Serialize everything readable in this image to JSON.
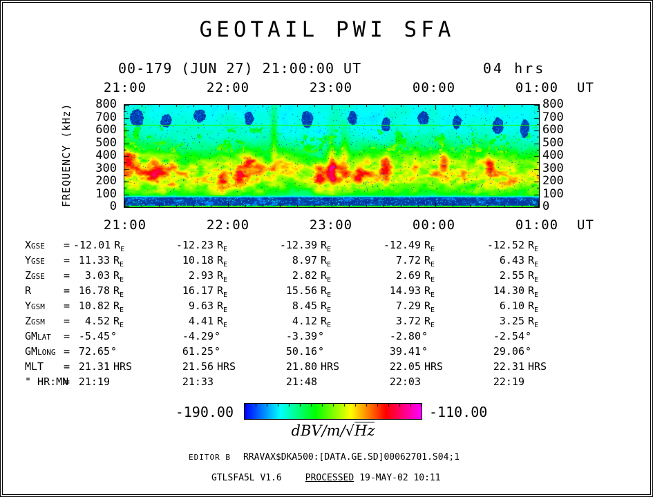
{
  "title": "GEOTAIL PWI SFA",
  "header": {
    "left": "00-179 (JUN 27) 21:00:00 UT",
    "right": "04 hrs"
  },
  "axes": {
    "time_ticks": [
      "21:00",
      "22:00",
      "23:00",
      "00:00",
      "01:00"
    ],
    "time_unit": "UT",
    "freq_label": "FREQUENCY (kHz)",
    "freq_ticks": [
      "800",
      "700",
      "600",
      "500",
      "400",
      "300",
      "200",
      "100",
      "0"
    ]
  },
  "chart_data": {
    "type": "heatmap",
    "title": "GEOTAIL PWI SFA dynamic spectrum, 2000 day 179 (JUN 27) 21:00-01:00 UT",
    "x": {
      "label": "UT",
      "start": "21:00",
      "end": "01:00",
      "hours": 4,
      "ticks": [
        "21:00",
        "22:00",
        "23:00",
        "00:00",
        "01:00"
      ],
      "minor_ticks_per_hour": 6
    },
    "y": {
      "label": "FREQUENCY (kHz)",
      "min": 0,
      "max": 800,
      "major_tick": 100,
      "minor_tick": 50
    },
    "z": {
      "label": "dBV/m/√Hz",
      "min": -190.0,
      "max": -110.0
    },
    "background_level": 0.21,
    "features": {
      "low_band": {
        "f_max_khz": 95,
        "desc": "continuous intense dark-blue band below ~95 kHz for the full interval"
      },
      "line_khz": 645,
      "main_emission": {
        "f_center_khz": 250,
        "f_spread_khz": 180,
        "desc": "continuous broadband green-yellow emission ~100-500 kHz with red cores, strongest 22:40-23:20"
      },
      "enhancements": [
        {
          "t": 0.01,
          "f": 380,
          "dt": 0.02,
          "df": 80,
          "s": 0.22
        },
        {
          "t": 0.08,
          "f": 300,
          "dt": 0.015,
          "df": 70,
          "s": 0.18
        },
        {
          "t": 0.3,
          "f": 360,
          "dt": 0.015,
          "df": 70,
          "s": 0.2
        },
        {
          "t": 0.36,
          "f": 520,
          "dt": 0.008,
          "df": 260,
          "s": 0.16
        },
        {
          "t": 0.47,
          "f": 200,
          "dt": 0.012,
          "df": 90,
          "s": 0.22
        },
        {
          "t": 0.5,
          "f": 340,
          "dt": 0.01,
          "df": 240,
          "s": 0.24
        },
        {
          "t": 0.53,
          "f": 420,
          "dt": 0.012,
          "df": 160,
          "s": 0.22
        },
        {
          "t": 0.565,
          "f": 260,
          "dt": 0.01,
          "df": 80,
          "s": 0.2
        },
        {
          "t": 0.63,
          "f": 350,
          "dt": 0.012,
          "df": 90,
          "s": 0.2
        },
        {
          "t": 0.7,
          "f": 300,
          "dt": 0.01,
          "df": 80,
          "s": 0.18
        },
        {
          "t": 0.77,
          "f": 380,
          "dt": 0.012,
          "df": 90,
          "s": 0.2
        },
        {
          "t": 0.88,
          "f": 330,
          "dt": 0.012,
          "df": 80,
          "s": 0.18
        }
      ],
      "dropouts": [
        {
          "t": 0.03,
          "f": 700,
          "dt": 0.02,
          "df": 70
        },
        {
          "t": 0.1,
          "f": 680,
          "dt": 0.015,
          "df": 60
        },
        {
          "t": 0.18,
          "f": 720,
          "dt": 0.018,
          "df": 60
        },
        {
          "t": 0.3,
          "f": 700,
          "dt": 0.012,
          "df": 60
        },
        {
          "t": 0.44,
          "f": 690,
          "dt": 0.015,
          "df": 70
        },
        {
          "t": 0.55,
          "f": 700,
          "dt": 0.012,
          "df": 60
        },
        {
          "t": 0.63,
          "f": 650,
          "dt": 0.012,
          "df": 60
        },
        {
          "t": 0.72,
          "f": 700,
          "dt": 0.015,
          "df": 60
        },
        {
          "t": 0.8,
          "f": 670,
          "dt": 0.012,
          "df": 60
        },
        {
          "t": 0.9,
          "f": 640,
          "dt": 0.015,
          "df": 70
        },
        {
          "t": 0.965,
          "f": 620,
          "dt": 0.012,
          "df": 80
        }
      ]
    }
  },
  "ephemeris": {
    "eq": "=",
    "rows": [
      {
        "main": "X",
        "small": "GSE",
        "u1": "R",
        "u2": "E",
        "values": [
          "-12.01",
          "-12.23",
          "-12.39",
          "-12.49",
          "-12.52"
        ]
      },
      {
        "main": "Y",
        "small": "GSE",
        "u1": "R",
        "u2": "E",
        "values": [
          "11.33",
          "10.18",
          "8.97",
          "7.72",
          "6.43"
        ]
      },
      {
        "main": "Z",
        "small": "GSE",
        "u1": "R",
        "u2": "E",
        "values": [
          "3.03",
          "2.93",
          "2.82",
          "2.69",
          "2.55"
        ]
      },
      {
        "main": "R",
        "small": "",
        "u1": "R",
        "u2": "E",
        "values": [
          "16.78",
          "16.17",
          "15.56",
          "14.93",
          "14.30"
        ]
      },
      {
        "main": "Y",
        "small": "GSM",
        "u1": "R",
        "u2": "E",
        "values": [
          "10.82",
          "9.63",
          "8.45",
          "7.29",
          "6.10"
        ]
      },
      {
        "main": "Z",
        "small": "GSM",
        "u1": "R",
        "u2": "E",
        "values": [
          "4.52",
          "4.41",
          "4.12",
          "3.72",
          "3.25"
        ]
      },
      {
        "main": "GM",
        "small": "LAT",
        "u1": "°",
        "u2": "",
        "values": [
          "-5.45",
          "-4.29",
          "-3.39",
          "-2.80",
          "-2.54"
        ]
      },
      {
        "main": "GM",
        "small": "LONG",
        "u1": "°",
        "u2": "",
        "values": [
          "72.65",
          "61.25",
          "50.16",
          "39.41",
          "29.06"
        ]
      },
      {
        "main": "MLT",
        "small": "",
        "u1": "HRS",
        "u2": "",
        "values": [
          "21.31",
          "21.56",
          "21.80",
          "22.05",
          "22.31"
        ]
      },
      {
        "main": "\" HR:MN",
        "small": "",
        "u1": "",
        "u2": "",
        "values": [
          "21:19",
          "21:33",
          "21:48",
          "22:03",
          "22:19"
        ]
      }
    ]
  },
  "colorbar": {
    "min_label": "-190.00",
    "max_label": "-110.00",
    "unit_prefix": "dBV/m/",
    "unit_radical": "√",
    "unit_radicand": "Hz"
  },
  "footer": {
    "editor_label": "EDITOR B",
    "file_spec": "RRAVAX$DKA500:[DATA.GE.SD]00062701.S04;1",
    "program": "GTLSFA5L V1.6",
    "processed_label": "PROCESSED",
    "processed_value": "19-MAY-02  10:11"
  }
}
